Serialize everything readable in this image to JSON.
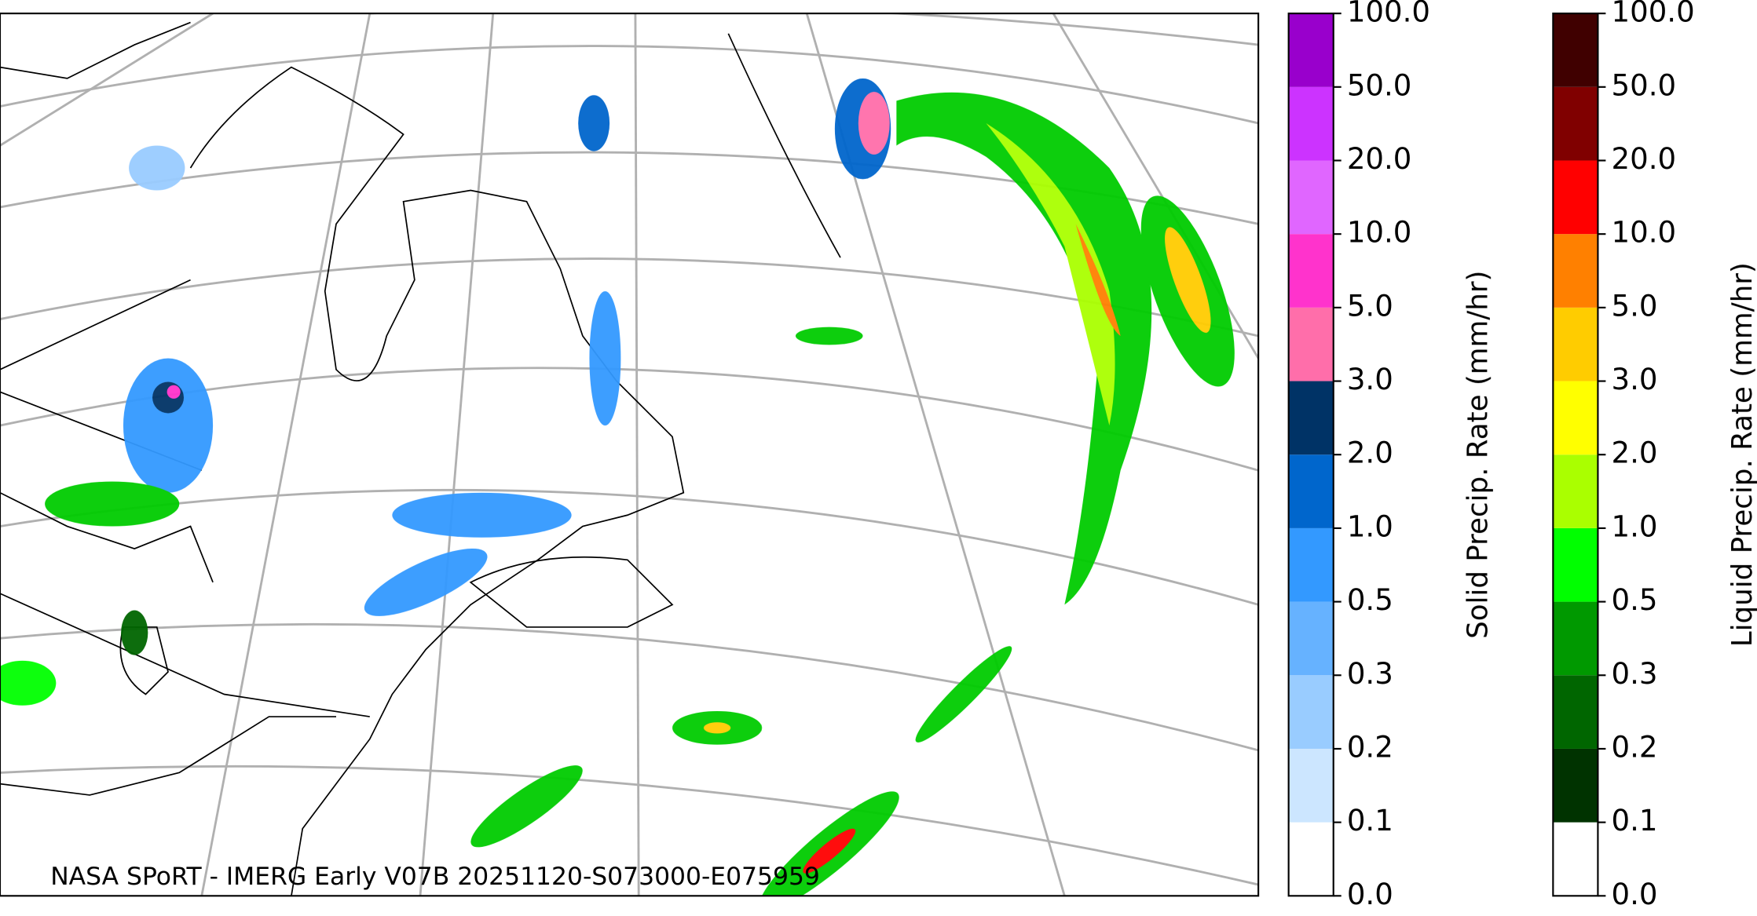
{
  "map": {
    "caption": "NASA SPoRT - IMERG Early V07B 20251120-S073000-E075959"
  },
  "colorbars": [
    {
      "label": "Solid Precip. Rate (mm/hr)",
      "ticks": [
        {
          "value": 0,
          "label": "0.0"
        },
        {
          "value": 0.1,
          "label": "0.1"
        },
        {
          "value": 0.2,
          "label": "0.2"
        },
        {
          "value": 0.3,
          "label": "0.3"
        },
        {
          "value": 0.5,
          "label": "0.5"
        },
        {
          "value": 1,
          "label": "1.0"
        },
        {
          "value": 2,
          "label": "2.0"
        },
        {
          "value": 3,
          "label": "3.0"
        },
        {
          "value": 5,
          "label": "5.0"
        },
        {
          "value": 10,
          "label": "10.0"
        },
        {
          "value": 20,
          "label": "20.0"
        },
        {
          "value": 50,
          "label": "50.0"
        },
        {
          "value": 100,
          "label": "100.0"
        }
      ],
      "colors": [
        "#ffffff",
        "#cce6ff",
        "#99ccff",
        "#66b2ff",
        "#3399ff",
        "#0066cc",
        "#003366",
        "#ff6eaa",
        "#ff33cc",
        "#e066ff",
        "#cc33ff",
        "#9900cc"
      ]
    },
    {
      "label": "Liquid Precip. Rate (mm/hr)",
      "ticks": [
        {
          "value": 0,
          "label": "0.0"
        },
        {
          "value": 0.1,
          "label": "0.1"
        },
        {
          "value": 0.2,
          "label": "0.2"
        },
        {
          "value": 0.3,
          "label": "0.3"
        },
        {
          "value": 0.5,
          "label": "0.5"
        },
        {
          "value": 1,
          "label": "1.0"
        },
        {
          "value": 2,
          "label": "2.0"
        },
        {
          "value": 3,
          "label": "3.0"
        },
        {
          "value": 5,
          "label": "5.0"
        },
        {
          "value": 10,
          "label": "10.0"
        },
        {
          "value": 20,
          "label": "20.0"
        },
        {
          "value": 50,
          "label": "50.0"
        },
        {
          "value": 100,
          "label": "100.0"
        }
      ],
      "colors": [
        "#ffffff",
        "#003300",
        "#006600",
        "#009900",
        "#00ff00",
        "#aaff00",
        "#ffff00",
        "#ffcc00",
        "#ff8000",
        "#ff0000",
        "#800000",
        "#400000"
      ]
    }
  ]
}
